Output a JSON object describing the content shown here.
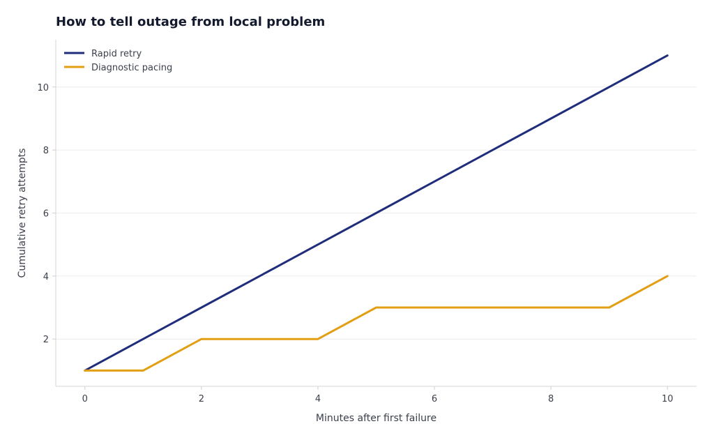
{
  "chart_data": {
    "type": "line",
    "title": "How to tell outage from local problem",
    "xlabel": "Minutes after first failure",
    "ylabel": "Cumulative retry attempts",
    "x": [
      0,
      1,
      2,
      3,
      4,
      5,
      6,
      7,
      8,
      9,
      10
    ],
    "xlim": [
      -0.5,
      10.5
    ],
    "ylim": [
      0.5,
      11.5
    ],
    "xticks": [
      0,
      2,
      4,
      6,
      8,
      10
    ],
    "yticks": [
      2,
      4,
      6,
      8,
      10
    ],
    "grid": "horizontal",
    "legend": "top-left",
    "series": [
      {
        "name": "Rapid retry",
        "color": "#1f2d7b",
        "values": [
          1,
          2,
          3,
          4,
          5,
          6,
          7,
          8,
          9,
          10,
          11
        ]
      },
      {
        "name": "Diagnostic pacing",
        "color": "#e39f14",
        "values": [
          1,
          1,
          2,
          2,
          2,
          3,
          3,
          3,
          3,
          3,
          4
        ]
      }
    ]
  }
}
